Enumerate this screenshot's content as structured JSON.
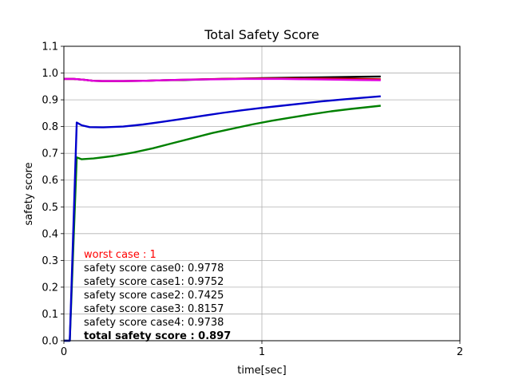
{
  "chart_data": {
    "type": "line",
    "title": "Total Safety Score",
    "xlabel": "time[sec]",
    "ylabel": "safety score",
    "xlim": [
      0,
      2
    ],
    "ylim": [
      0,
      1.1
    ],
    "xticks": [
      "0",
      "1",
      "2"
    ],
    "yticks": [
      "0.0",
      "0.1",
      "0.2",
      "0.3",
      "0.4",
      "0.5",
      "0.6",
      "0.7",
      "0.8",
      "0.9",
      "1.0",
      "1.1"
    ],
    "grid": true,
    "series": [
      {
        "color": "#008000",
        "points": [
          [
            0.0,
            0.0
          ],
          [
            0.03,
            0.0
          ],
          [
            0.065,
            0.685
          ],
          [
            0.09,
            0.678
          ],
          [
            0.15,
            0.681
          ],
          [
            0.25,
            0.69
          ],
          [
            0.35,
            0.703
          ],
          [
            0.45,
            0.719
          ],
          [
            0.55,
            0.738
          ],
          [
            0.65,
            0.757
          ],
          [
            0.75,
            0.776
          ],
          [
            0.85,
            0.792
          ],
          [
            0.95,
            0.808
          ],
          [
            1.05,
            0.822
          ],
          [
            1.15,
            0.834
          ],
          [
            1.25,
            0.846
          ],
          [
            1.35,
            0.857
          ],
          [
            1.45,
            0.866
          ],
          [
            1.6,
            0.878
          ]
        ]
      },
      {
        "color": "#0000cc",
        "points": [
          [
            0.0,
            0.0
          ],
          [
            0.03,
            0.0
          ],
          [
            0.065,
            0.815
          ],
          [
            0.09,
            0.805
          ],
          [
            0.13,
            0.798
          ],
          [
            0.2,
            0.797
          ],
          [
            0.3,
            0.8
          ],
          [
            0.4,
            0.808
          ],
          [
            0.5,
            0.818
          ],
          [
            0.6,
            0.829
          ],
          [
            0.7,
            0.84
          ],
          [
            0.8,
            0.851
          ],
          [
            0.9,
            0.861
          ],
          [
            1.0,
            0.87
          ],
          [
            1.1,
            0.878
          ],
          [
            1.2,
            0.886
          ],
          [
            1.3,
            0.894
          ],
          [
            1.4,
            0.901
          ],
          [
            1.5,
            0.907
          ],
          [
            1.6,
            0.913
          ]
        ]
      },
      {
        "color": "#000000",
        "points": [
          [
            0.0,
            0.978
          ],
          [
            0.05,
            0.978
          ],
          [
            0.1,
            0.975
          ],
          [
            0.15,
            0.971
          ],
          [
            0.2,
            0.97
          ],
          [
            0.3,
            0.97
          ],
          [
            0.4,
            0.971
          ],
          [
            0.5,
            0.973
          ],
          [
            0.6,
            0.974
          ],
          [
            0.7,
            0.976
          ],
          [
            0.8,
            0.978
          ],
          [
            0.9,
            0.979
          ],
          [
            1.0,
            0.981
          ],
          [
            1.1,
            0.982
          ],
          [
            1.2,
            0.983
          ],
          [
            1.3,
            0.984
          ],
          [
            1.4,
            0.985
          ],
          [
            1.5,
            0.986
          ],
          [
            1.6,
            0.987
          ]
        ]
      },
      {
        "color": "#cc0000",
        "points": [
          [
            0.0,
            0.978
          ],
          [
            0.05,
            0.978
          ],
          [
            0.1,
            0.975
          ],
          [
            0.15,
            0.971
          ],
          [
            0.2,
            0.97
          ],
          [
            0.3,
            0.97
          ],
          [
            0.4,
            0.971
          ],
          [
            0.5,
            0.973
          ],
          [
            0.6,
            0.975
          ],
          [
            0.7,
            0.977
          ],
          [
            0.8,
            0.978
          ],
          [
            0.9,
            0.979
          ],
          [
            1.0,
            0.98
          ],
          [
            1.1,
            0.98
          ],
          [
            1.2,
            0.98
          ],
          [
            1.3,
            0.98
          ],
          [
            1.4,
            0.979
          ],
          [
            1.5,
            0.978
          ],
          [
            1.6,
            0.977
          ]
        ]
      },
      {
        "color": "#e000e0",
        "points": [
          [
            0.0,
            0.978
          ],
          [
            0.05,
            0.978
          ],
          [
            0.1,
            0.975
          ],
          [
            0.15,
            0.971
          ],
          [
            0.2,
            0.97
          ],
          [
            0.3,
            0.97
          ],
          [
            0.4,
            0.971
          ],
          [
            0.5,
            0.973
          ],
          [
            0.6,
            0.975
          ],
          [
            0.7,
            0.976
          ],
          [
            0.8,
            0.977
          ],
          [
            0.9,
            0.978
          ],
          [
            1.0,
            0.978
          ],
          [
            1.1,
            0.978
          ],
          [
            1.2,
            0.977
          ],
          [
            1.3,
            0.976
          ],
          [
            1.4,
            0.975
          ],
          [
            1.5,
            0.974
          ],
          [
            1.6,
            0.973
          ]
        ]
      }
    ],
    "annotations": [
      {
        "text": "worst case : 1",
        "color": "#ff0000",
        "bold": false
      },
      {
        "text": "safety score case0: 0.9778",
        "color": "#000000",
        "bold": false
      },
      {
        "text": "safety score case1: 0.9752",
        "color": "#000000",
        "bold": false
      },
      {
        "text": "safety score case2: 0.7425",
        "color": "#000000",
        "bold": false
      },
      {
        "text": "safety score case3: 0.8157",
        "color": "#000000",
        "bold": false
      },
      {
        "text": "safety score case4: 0.9738",
        "color": "#000000",
        "bold": false
      },
      {
        "text": "total safety score : 0.897",
        "color": "#000000",
        "bold": true
      }
    ]
  }
}
